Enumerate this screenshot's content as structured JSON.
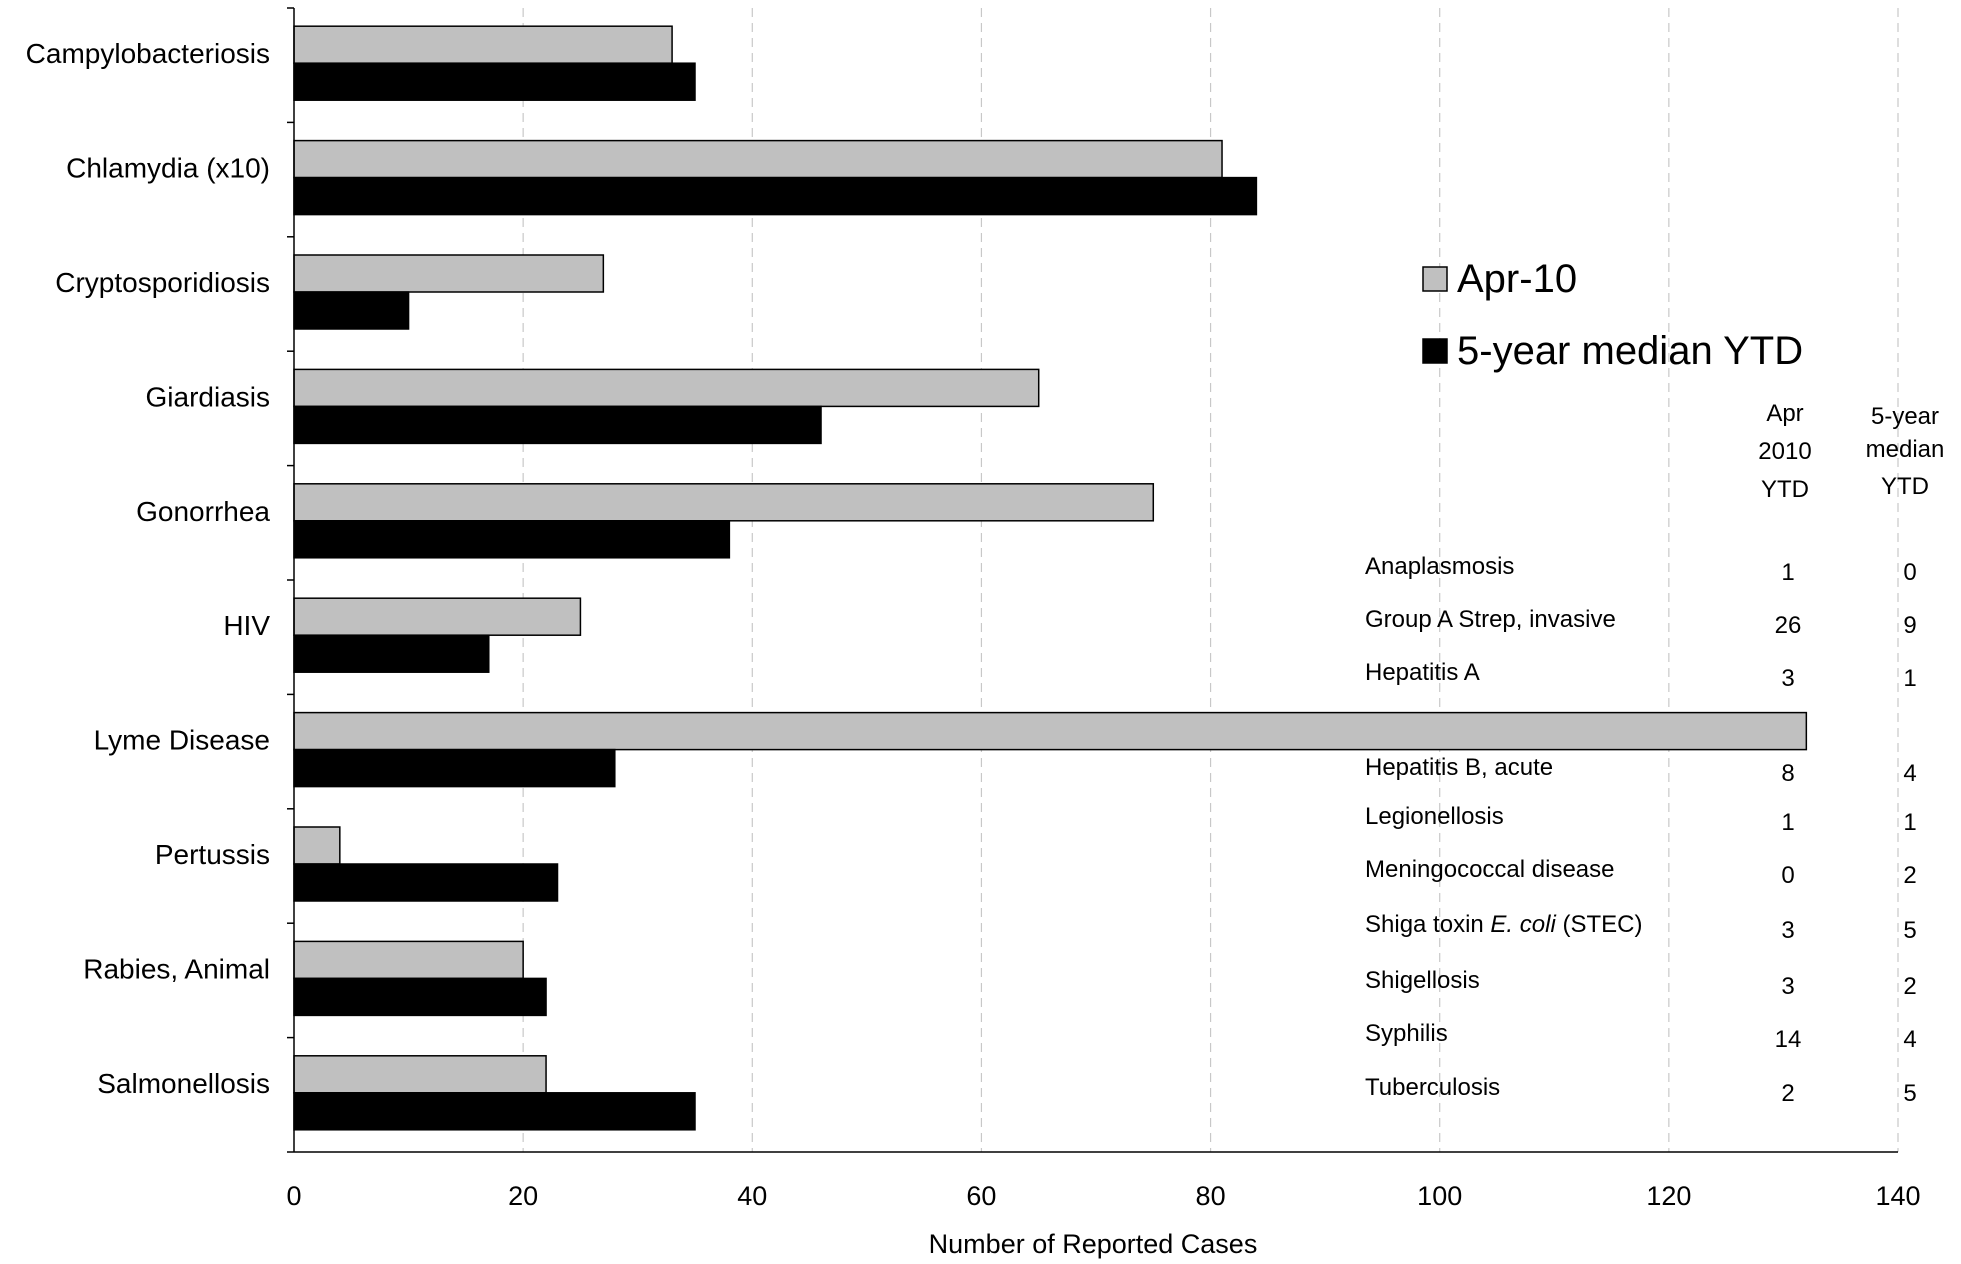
{
  "chart_data": {
    "type": "bar",
    "orientation": "horizontal",
    "categories": [
      "Campylobacteriosis",
      "Chlamydia (x10)",
      "Cryptosporidiosis",
      "Giardiasis",
      "Gonorrhea",
      "HIV",
      "Lyme Disease",
      "Pertussis",
      "Rabies, Animal",
      "Salmonellosis"
    ],
    "series": [
      {
        "name": "Apr-10",
        "color": "#c0c0c0",
        "values": [
          33,
          81,
          27,
          65,
          75,
          25,
          132,
          4,
          20,
          22
        ]
      },
      {
        "name": "5-year median YTD",
        "color": "#000000",
        "values": [
          35,
          84,
          10,
          46,
          38,
          17,
          28,
          23,
          22,
          35
        ]
      }
    ],
    "xlabel": "Number of Reported Cases",
    "xlim": [
      0,
      140
    ],
    "xticks": [
      0,
      20,
      40,
      60,
      80,
      100,
      120,
      140
    ],
    "grid": "vertical dashed",
    "legend_position": "right"
  },
  "table": {
    "headers": {
      "col1": [
        "Apr",
        "2010",
        "YTD"
      ],
      "col2": [
        "5-year",
        "median",
        "YTD"
      ]
    },
    "rows": [
      {
        "name": "Anaplasmosis",
        "apr2010": "1",
        "median": "0"
      },
      {
        "name": "Group A Strep, invasive",
        "apr2010": "26",
        "median": "9"
      },
      {
        "name": "Hepatitis A",
        "apr2010": "3",
        "median": "1"
      },
      {
        "name": "Hepatitis B, acute",
        "apr2010": "8",
        "median": "4"
      },
      {
        "name": "Legionellosis",
        "apr2010": "1",
        "median": "1"
      },
      {
        "name": "Meningococcal disease",
        "apr2010": "0",
        "median": "2"
      },
      {
        "name": "Shiga toxin E. coli (STEC)",
        "name_parts": {
          "pre": "Shiga toxin ",
          "italic": "E. coli",
          "post": " (STEC)"
        },
        "apr2010": "3",
        "median": "5"
      },
      {
        "name": "Shigellosis",
        "apr2010": "3",
        "median": "2"
      },
      {
        "name": "Syphilis",
        "apr2010": "14",
        "median": "4"
      },
      {
        "name": "Tuberculosis",
        "apr2010": "2",
        "median": "5"
      }
    ]
  }
}
